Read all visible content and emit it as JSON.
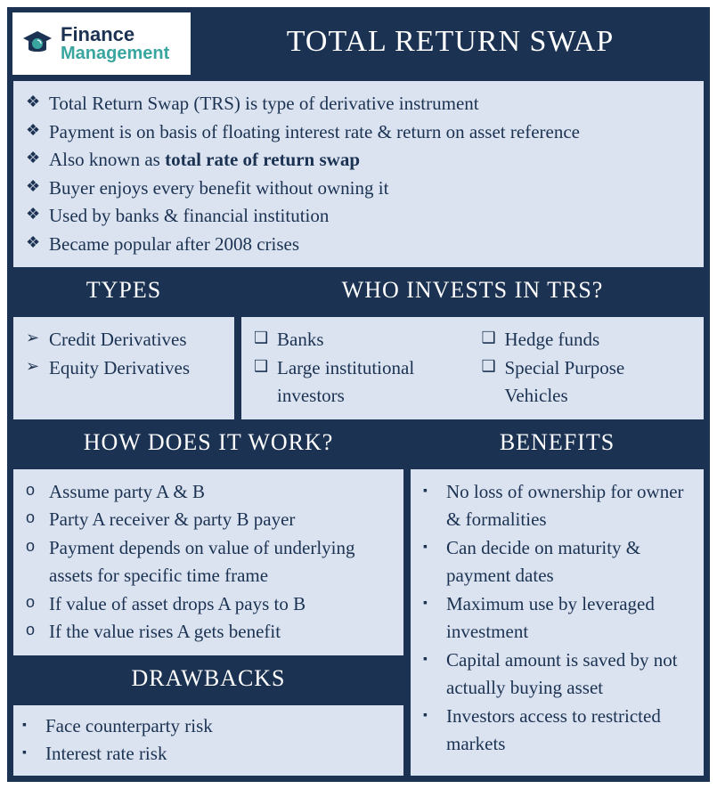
{
  "logo": {
    "line1": "Finance",
    "line2": "Management"
  },
  "title": "TOTAL RETURN SWAP",
  "intro": [
    "Total Return Swap (TRS) is type of derivative instrument",
    "Payment is on basis of floating interest rate & return on asset reference",
    "Also known as <b>total rate of return swap</b>",
    "Buyer enjoys every benefit without owning it",
    "Used by banks & financial institution",
    "Became popular after 2008 crises"
  ],
  "types": {
    "title": "TYPES",
    "items": [
      "Credit Derivatives",
      "Equity Derivatives"
    ]
  },
  "who": {
    "title": "WHO INVESTS IN TRS?",
    "col1": [
      "Banks",
      "Large institutional investors"
    ],
    "col2": [
      "Hedge funds",
      "Special Purpose Vehicles"
    ]
  },
  "how": {
    "title": "HOW DOES IT WORK?",
    "items": [
      "Assume party A & B",
      "Party A receiver & party B payer",
      "Payment depends on value of underlying assets for specific time frame",
      "If value of asset drops A pays to B",
      "If the value rises A gets benefit"
    ]
  },
  "drawbacks": {
    "title": "DRAWBACKS",
    "items": [
      "Face counterparty risk",
      "Interest rate risk"
    ]
  },
  "benefits": {
    "title": "BENEFITS",
    "items": [
      "No loss of ownership for owner & formalities",
      "Can decide on maturity & payment dates",
      "Maximum use by leveraged investment",
      "Capital amount is saved by not actually buying asset",
      "Investors access to restricted markets"
    ]
  },
  "colors": {
    "dark": "#1b3252",
    "light": "#dbe3f0",
    "teal": "#3aa6a0"
  }
}
